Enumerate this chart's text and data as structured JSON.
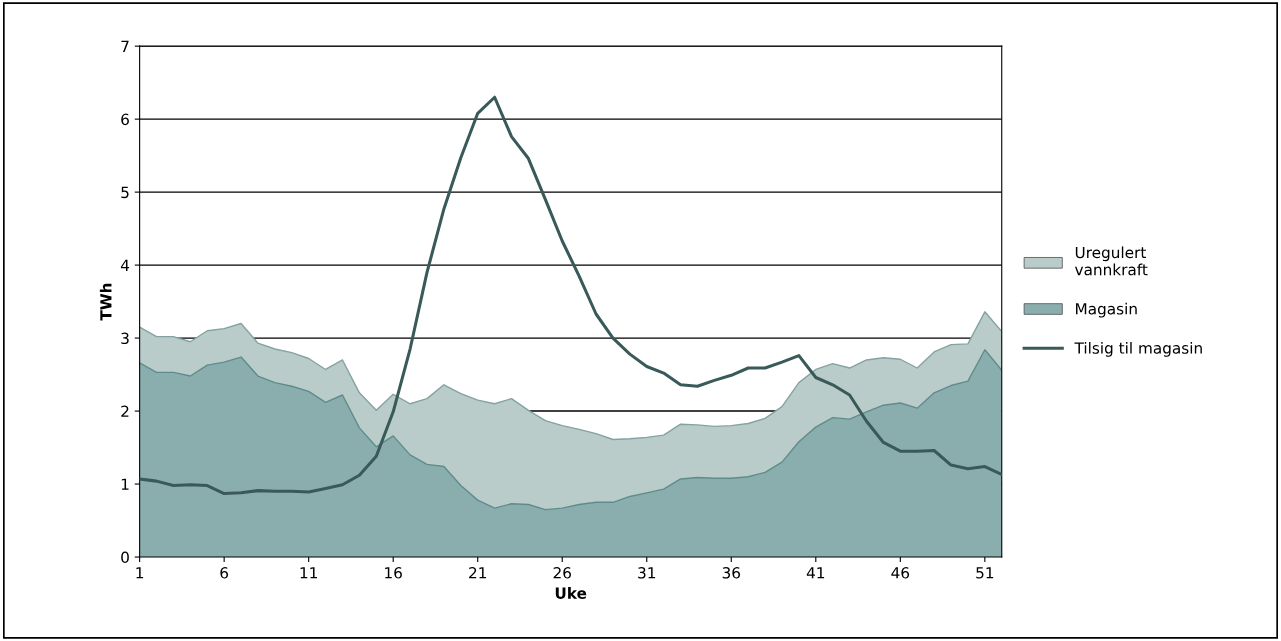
{
  "chart_data": {
    "type": "area",
    "stacked": true,
    "xlabel": "Uke",
    "ylabel": "TWh",
    "x": [
      1,
      2,
      3,
      4,
      5,
      6,
      7,
      8,
      9,
      10,
      11,
      12,
      13,
      14,
      15,
      16,
      17,
      18,
      19,
      20,
      21,
      22,
      23,
      24,
      25,
      26,
      27,
      28,
      29,
      30,
      31,
      32,
      33,
      34,
      35,
      36,
      37,
      38,
      39,
      40,
      41,
      42,
      43,
      44,
      45,
      46,
      47,
      48,
      49,
      50,
      51,
      52
    ],
    "xlim": [
      1,
      52
    ],
    "xticks": [
      1,
      6,
      11,
      16,
      21,
      26,
      31,
      36,
      41,
      46,
      51
    ],
    "ylim": [
      0,
      7
    ],
    "yticks": [
      0,
      1,
      2,
      3,
      4,
      5,
      6,
      7
    ],
    "grid": "y",
    "legend": "right",
    "series": [
      {
        "name": "Magasin",
        "color": "#8aaeae",
        "values": [
          2.66,
          2.53,
          2.53,
          2.48,
          2.63,
          2.67,
          2.74,
          2.48,
          2.39,
          2.34,
          2.27,
          2.12,
          2.22,
          1.77,
          1.51,
          1.66,
          1.4,
          1.27,
          1.24,
          0.98,
          0.78,
          0.67,
          0.73,
          0.72,
          0.65,
          0.67,
          0.72,
          0.75,
          0.75,
          0.83,
          0.88,
          0.93,
          1.07,
          1.09,
          1.08,
          1.08,
          1.1,
          1.16,
          1.3,
          1.58,
          1.78,
          1.91,
          1.89,
          1.99,
          2.08,
          2.11,
          2.04,
          2.25,
          2.35,
          2.41,
          2.84,
          2.56
        ]
      },
      {
        "name": "Uregulert vannkraft",
        "color": "#baccca",
        "values": [
          0.49,
          0.49,
          0.49,
          0.47,
          0.47,
          0.46,
          0.46,
          0.45,
          0.46,
          0.46,
          0.45,
          0.45,
          0.48,
          0.48,
          0.5,
          0.57,
          0.7,
          0.9,
          1.12,
          1.26,
          1.37,
          1.43,
          1.44,
          1.29,
          1.22,
          1.13,
          1.03,
          0.94,
          0.86,
          0.79,
          0.76,
          0.74,
          0.75,
          0.72,
          0.71,
          0.72,
          0.73,
          0.74,
          0.76,
          0.81,
          0.79,
          0.74,
          0.7,
          0.71,
          0.65,
          0.6,
          0.55,
          0.56,
          0.56,
          0.51,
          0.52,
          0.53
        ]
      },
      {
        "name": "Tilsig til magasin",
        "type": "line",
        "color": "#3a5a5a",
        "values": [
          1.07,
          1.04,
          0.98,
          0.99,
          0.98,
          0.87,
          0.88,
          0.91,
          0.9,
          0.9,
          0.89,
          0.94,
          0.99,
          1.12,
          1.38,
          1.99,
          2.85,
          3.9,
          4.77,
          5.47,
          6.08,
          6.3,
          5.76,
          5.46,
          4.9,
          4.33,
          3.85,
          3.33,
          3.0,
          2.78,
          2.61,
          2.52,
          2.36,
          2.34,
          2.42,
          2.49,
          2.59,
          2.59,
          2.67,
          2.76,
          2.46,
          2.36,
          2.22,
          1.86,
          1.57,
          1.45,
          1.45,
          1.46,
          1.26,
          1.21,
          1.24,
          1.13
        ]
      }
    ]
  }
}
